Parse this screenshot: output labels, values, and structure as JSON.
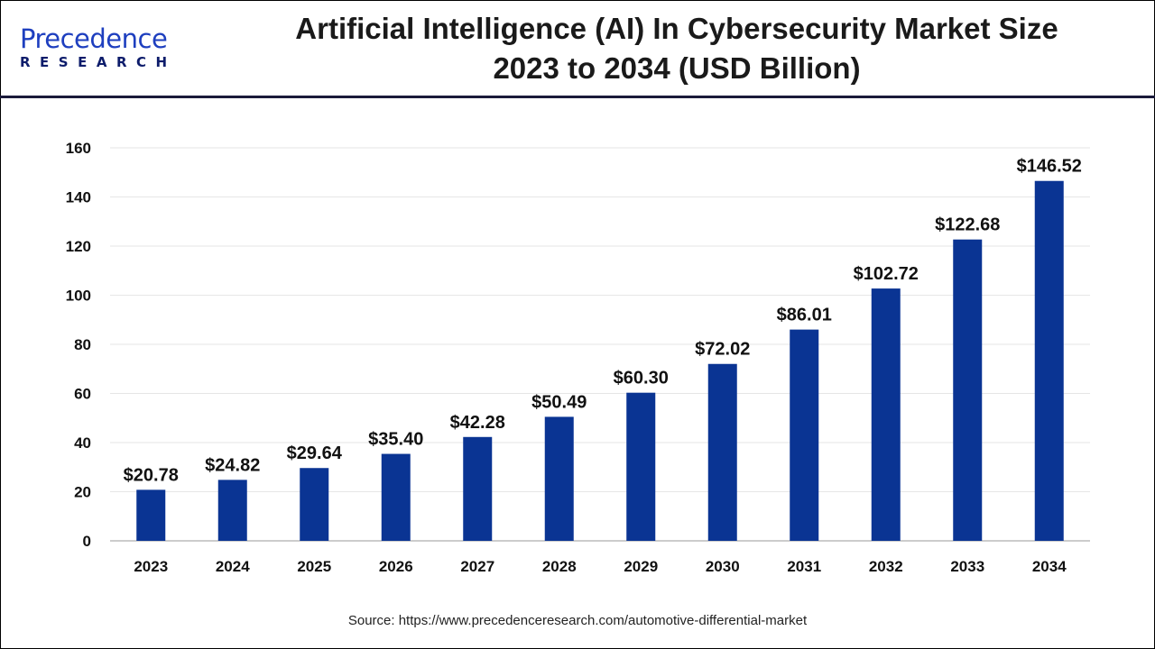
{
  "logo": {
    "line1": "Precedence",
    "line2": "RESEARCH"
  },
  "title_line1": "Artificial Intelligence (AI) In Cybersecurity Market  Size",
  "title_line2": "2023 to 2034 (USD Billion)",
  "source": "Source: https://www.precedenceresearch.com/automotive-differential-market",
  "chart_data": {
    "type": "bar",
    "title": "Artificial Intelligence (AI) In Cybersecurity Market  Size 2023 to 2034 (USD Billion)",
    "categories": [
      "2023",
      "2024",
      "2025",
      "2026",
      "2027",
      "2028",
      "2029",
      "2030",
      "2031",
      "2032",
      "2033",
      "2034"
    ],
    "values": [
      20.78,
      24.82,
      29.64,
      35.4,
      42.28,
      50.49,
      60.3,
      72.02,
      86.01,
      102.72,
      122.68,
      146.52
    ],
    "data_labels": [
      "$20.78",
      "$24.82",
      "$29.64",
      "$35.40",
      "$42.28",
      "$50.49",
      "$60.30",
      "$72.02",
      "$86.01",
      "$102.72",
      "$122.68",
      "$146.52"
    ],
    "yticks": [
      0,
      20,
      40,
      60,
      80,
      100,
      120,
      140,
      160
    ],
    "ylim": [
      0,
      160
    ],
    "xlabel": "",
    "ylabel": "",
    "grid": true,
    "bar_color": "#0a3493"
  }
}
